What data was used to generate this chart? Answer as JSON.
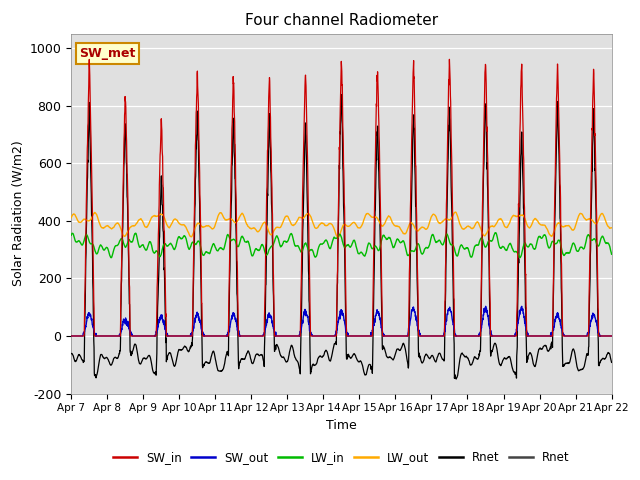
{
  "title": "Four channel Radiometer",
  "xlabel": "Time",
  "ylabel": "Solar Radiation (W/m2)",
  "ylim": [
    -200,
    1050
  ],
  "yticks": [
    -200,
    0,
    200,
    400,
    600,
    800,
    1000
  ],
  "n_days": 15,
  "xtick_labels": [
    "Apr 7",
    "Apr 8",
    "Apr 9",
    "Apr 10",
    "Apr 11",
    "Apr 12",
    "Apr 13",
    "Apr 14",
    "Apr 15",
    "Apr 16",
    "Apr 17",
    "Apr 18",
    "Apr 19",
    "Apr 20",
    "Apr 21",
    "Apr 22"
  ],
  "colors": {
    "SW_in": "#cc0000",
    "SW_out": "#0000cc",
    "LW_in": "#00bb00",
    "LW_out": "#ffaa00",
    "Rnet_black": "#000000",
    "Rnet_dark": "#444444"
  },
  "bg_color": "#e0e0e0",
  "annotation_text": "SW_met",
  "annotation_color": "#aa0000",
  "annotation_bg": "#ffffcc",
  "annotation_border": "#cc8800",
  "day_peaks_SW_in": [
    950,
    830,
    750,
    920,
    905,
    900,
    930,
    960,
    945,
    960,
    970,
    960,
    940,
    950,
    920
  ],
  "day_peaks_SW_out": [
    75,
    55,
    65,
    75,
    75,
    75,
    85,
    85,
    85,
    95,
    95,
    95,
    95,
    75,
    75
  ]
}
